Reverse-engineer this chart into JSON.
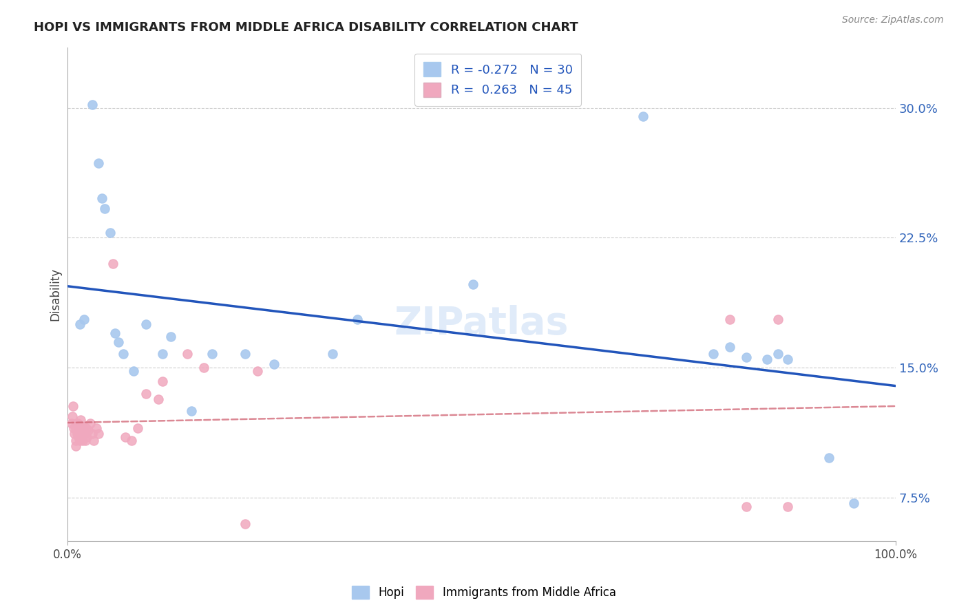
{
  "title": "HOPI VS IMMIGRANTS FROM MIDDLE AFRICA DISABILITY CORRELATION CHART",
  "source": "Source: ZipAtlas.com",
  "ylabel": "Disability",
  "xlim": [
    0.0,
    1.0
  ],
  "ylim": [
    0.05,
    0.335
  ],
  "yticks": [
    0.075,
    0.15,
    0.225,
    0.3
  ],
  "ytick_labels": [
    "7.5%",
    "15.0%",
    "22.5%",
    "30.0%"
  ],
  "xtick_vals": [
    0.0,
    1.0
  ],
  "xtick_labels": [
    "0.0%",
    "100.0%"
  ],
  "hopi_R": -0.272,
  "hopi_N": 30,
  "immigrants_R": 0.263,
  "immigrants_N": 45,
  "hopi_color": "#a8c8ee",
  "hopi_line_color": "#2255bb",
  "immigrants_color": "#f0a8be",
  "immigrants_line_color": "#d06070",
  "watermark": "ZIPatlas",
  "hopi_points": [
    [
      0.015,
      0.175
    ],
    [
      0.02,
      0.178
    ],
    [
      0.03,
      0.302
    ],
    [
      0.038,
      0.268
    ],
    [
      0.042,
      0.248
    ],
    [
      0.045,
      0.242
    ],
    [
      0.052,
      0.228
    ],
    [
      0.058,
      0.17
    ],
    [
      0.062,
      0.165
    ],
    [
      0.068,
      0.158
    ],
    [
      0.08,
      0.148
    ],
    [
      0.095,
      0.175
    ],
    [
      0.115,
      0.158
    ],
    [
      0.125,
      0.168
    ],
    [
      0.15,
      0.125
    ],
    [
      0.175,
      0.158
    ],
    [
      0.215,
      0.158
    ],
    [
      0.25,
      0.152
    ],
    [
      0.32,
      0.158
    ],
    [
      0.35,
      0.178
    ],
    [
      0.49,
      0.198
    ],
    [
      0.695,
      0.295
    ],
    [
      0.78,
      0.158
    ],
    [
      0.8,
      0.162
    ],
    [
      0.82,
      0.156
    ],
    [
      0.845,
      0.155
    ],
    [
      0.858,
      0.158
    ],
    [
      0.87,
      0.155
    ],
    [
      0.92,
      0.098
    ],
    [
      0.95,
      0.072
    ]
  ],
  "immigrants_points": [
    [
      0.005,
      0.118
    ],
    [
      0.006,
      0.122
    ],
    [
      0.007,
      0.128
    ],
    [
      0.008,
      0.115
    ],
    [
      0.009,
      0.112
    ],
    [
      0.01,
      0.108
    ],
    [
      0.01,
      0.105
    ],
    [
      0.01,
      0.115
    ],
    [
      0.011,
      0.118
    ],
    [
      0.012,
      0.112
    ],
    [
      0.013,
      0.118
    ],
    [
      0.014,
      0.115
    ],
    [
      0.014,
      0.11
    ],
    [
      0.015,
      0.108
    ],
    [
      0.016,
      0.12
    ],
    [
      0.017,
      0.112
    ],
    [
      0.018,
      0.115
    ],
    [
      0.018,
      0.112
    ],
    [
      0.019,
      0.108
    ],
    [
      0.02,
      0.116
    ],
    [
      0.021,
      0.112
    ],
    [
      0.022,
      0.108
    ],
    [
      0.023,
      0.115
    ],
    [
      0.024,
      0.11
    ],
    [
      0.025,
      0.114
    ],
    [
      0.028,
      0.118
    ],
    [
      0.03,
      0.112
    ],
    [
      0.032,
      0.108
    ],
    [
      0.035,
      0.115
    ],
    [
      0.038,
      0.112
    ],
    [
      0.055,
      0.21
    ],
    [
      0.07,
      0.11
    ],
    [
      0.078,
      0.108
    ],
    [
      0.085,
      0.115
    ],
    [
      0.095,
      0.135
    ],
    [
      0.11,
      0.132
    ],
    [
      0.115,
      0.142
    ],
    [
      0.145,
      0.158
    ],
    [
      0.165,
      0.15
    ],
    [
      0.215,
      0.06
    ],
    [
      0.23,
      0.148
    ],
    [
      0.8,
      0.178
    ],
    [
      0.82,
      0.07
    ],
    [
      0.858,
      0.178
    ],
    [
      0.87,
      0.07
    ]
  ]
}
